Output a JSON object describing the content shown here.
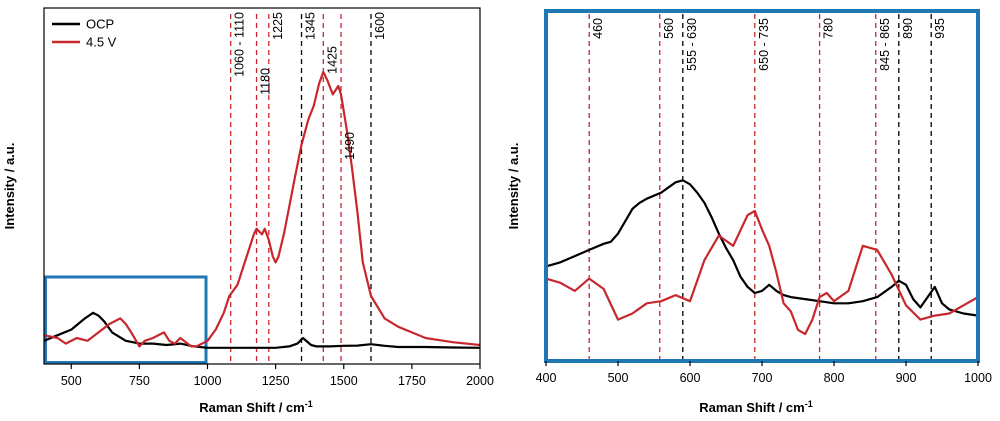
{
  "chart_data": [
    {
      "type": "line",
      "xlabel": "Raman Shift / cm",
      "xlabel_sup": "-1",
      "ylabel": "Intensity / a.u.",
      "xlim": [
        400,
        2000
      ],
      "ylim": [
        0,
        100
      ],
      "x_ticks": [
        500,
        750,
        1000,
        1250,
        1500,
        1750,
        2000
      ],
      "y_ticks_shown": false,
      "grid": false,
      "legend": {
        "placement": "top-left",
        "entries": [
          "OCP",
          "4.5 V"
        ]
      },
      "colors": {
        "OCP": "#000000",
        "4.5 V": "#c8282d",
        "inset_box": "#1f77b4"
      },
      "series": [
        {
          "name": "OCP",
          "x": [
            400,
            450,
            500,
            550,
            580,
            600,
            620,
            650,
            700,
            750,
            800,
            850,
            900,
            950,
            1000,
            1050,
            1100,
            1150,
            1200,
            1250,
            1300,
            1330,
            1350,
            1380,
            1400,
            1450,
            1500,
            1550,
            1600,
            1650,
            1700,
            1750,
            1800,
            1900,
            2000
          ],
          "y": [
            4,
            6,
            8,
            12,
            14,
            13,
            11,
            7,
            4,
            3,
            3,
            2.5,
            3,
            2,
            1.5,
            1.5,
            1.5,
            1.5,
            1.5,
            1.5,
            2,
            3,
            5,
            2.5,
            2,
            2,
            2.2,
            2.3,
            2.8,
            2.2,
            1.8,
            1.8,
            1.8,
            1.6,
            1.5
          ]
        },
        {
          "name": "4.5 V",
          "x": [
            400,
            450,
            480,
            520,
            560,
            600,
            640,
            680,
            700,
            720,
            750,
            770,
            800,
            840,
            860,
            880,
            900,
            940,
            960,
            1000,
            1030,
            1060,
            1080,
            1110,
            1130,
            1150,
            1170,
            1180,
            1200,
            1210,
            1225,
            1240,
            1250,
            1260,
            1280,
            1300,
            1320,
            1345,
            1370,
            1390,
            1410,
            1425,
            1440,
            1460,
            1480,
            1490,
            1510,
            1530,
            1550,
            1570,
            1600,
            1650,
            1700,
            1750,
            1800,
            1900,
            2000
          ],
          "y": [
            6,
            5,
            3,
            5,
            4,
            7,
            10,
            12,
            10,
            7,
            2,
            4,
            5,
            7,
            4,
            3,
            5,
            2,
            2,
            4,
            8,
            14,
            20,
            24,
            30,
            36,
            42,
            44,
            42,
            44,
            40,
            34,
            32,
            34,
            42,
            52,
            62,
            74,
            83,
            88,
            96,
            100,
            97,
            92,
            95,
            92,
            80,
            66,
            50,
            32,
            20,
            12,
            9,
            7,
            5,
            3.5,
            2.5
          ]
        }
      ],
      "peak_lines": [
        {
          "x": 1085,
          "label": "1060 - 1110",
          "color": "#c8282d"
        },
        {
          "x": 1180,
          "label": "1180",
          "color": "#c8282d"
        },
        {
          "x": 1225,
          "label": "1225",
          "color": "#c8282d"
        },
        {
          "x": 1345,
          "label": "1345",
          "color": "#000000"
        },
        {
          "x": 1425,
          "label": "1425",
          "color": "#c8282d"
        },
        {
          "x": 1490,
          "label": "1490",
          "color": "#c8282d"
        },
        {
          "x": 1600,
          "label": "1600",
          "color": "#000000"
        }
      ],
      "inset_region": {
        "x_range": [
          400,
          1000
        ]
      }
    },
    {
      "type": "line",
      "xlabel": "Raman Shift / cm",
      "xlabel_sup": "-1",
      "ylabel": "Intensity / a.u.",
      "xlim": [
        400,
        1000
      ],
      "ylim": [
        0,
        100
      ],
      "x_ticks": [
        400,
        500,
        600,
        700,
        800,
        900,
        1000
      ],
      "y_ticks_shown": false,
      "grid": false,
      "frame_color": "#1f77b4",
      "series": [
        {
          "name": "OCP",
          "x": [
            400,
            420,
            440,
            460,
            480,
            490,
            500,
            510,
            520,
            530,
            540,
            560,
            580,
            590,
            600,
            610,
            620,
            630,
            640,
            650,
            660,
            670,
            680,
            690,
            700,
            710,
            720,
            730,
            740,
            760,
            780,
            800,
            820,
            840,
            860,
            880,
            890,
            900,
            910,
            920,
            930,
            940,
            950,
            960,
            980,
            1000
          ],
          "y": [
            33,
            35,
            38,
            41,
            44,
            45,
            49,
            55,
            61,
            64,
            66,
            69,
            74,
            75,
            73,
            69,
            64,
            57,
            49,
            42,
            36,
            28,
            23,
            20,
            21,
            24,
            21,
            19,
            18,
            17,
            16,
            15,
            15,
            16,
            18,
            23,
            26,
            24,
            17,
            13,
            18,
            23,
            15,
            12,
            10,
            9
          ]
        },
        {
          "name": "4.5 V",
          "x": [
            400,
            420,
            440,
            460,
            480,
            500,
            520,
            540,
            560,
            580,
            600,
            620,
            640,
            660,
            680,
            690,
            700,
            710,
            720,
            730,
            740,
            750,
            760,
            770,
            780,
            790,
            800,
            820,
            840,
            860,
            880,
            900,
            920,
            940,
            960,
            980,
            1000
          ],
          "y": [
            27,
            25,
            21,
            27,
            22,
            7,
            10,
            15,
            16,
            19,
            16,
            36,
            48,
            43,
            58,
            60,
            51,
            43,
            30,
            15,
            11,
            2,
            0,
            7,
            18,
            20,
            16,
            21,
            43,
            41,
            29,
            14,
            7,
            9,
            10,
            14,
            18
          ]
        }
      ],
      "peak_lines": [
        {
          "x": 460,
          "label": "460",
          "color": "#c8282d"
        },
        {
          "x": 558,
          "label": "560",
          "color": "#c8282d"
        },
        {
          "x": 590,
          "label": "555 - 630",
          "color": "#000000"
        },
        {
          "x": 690,
          "label": "650 - 735",
          "color": "#c8282d"
        },
        {
          "x": 780,
          "label": "780",
          "color": "#c8282d"
        },
        {
          "x": 858,
          "label": "845 - 865",
          "color": "#c8282d"
        },
        {
          "x": 890,
          "label": "890",
          "color": "#000000"
        },
        {
          "x": 935,
          "label": "935",
          "color": "#000000"
        }
      ]
    }
  ]
}
